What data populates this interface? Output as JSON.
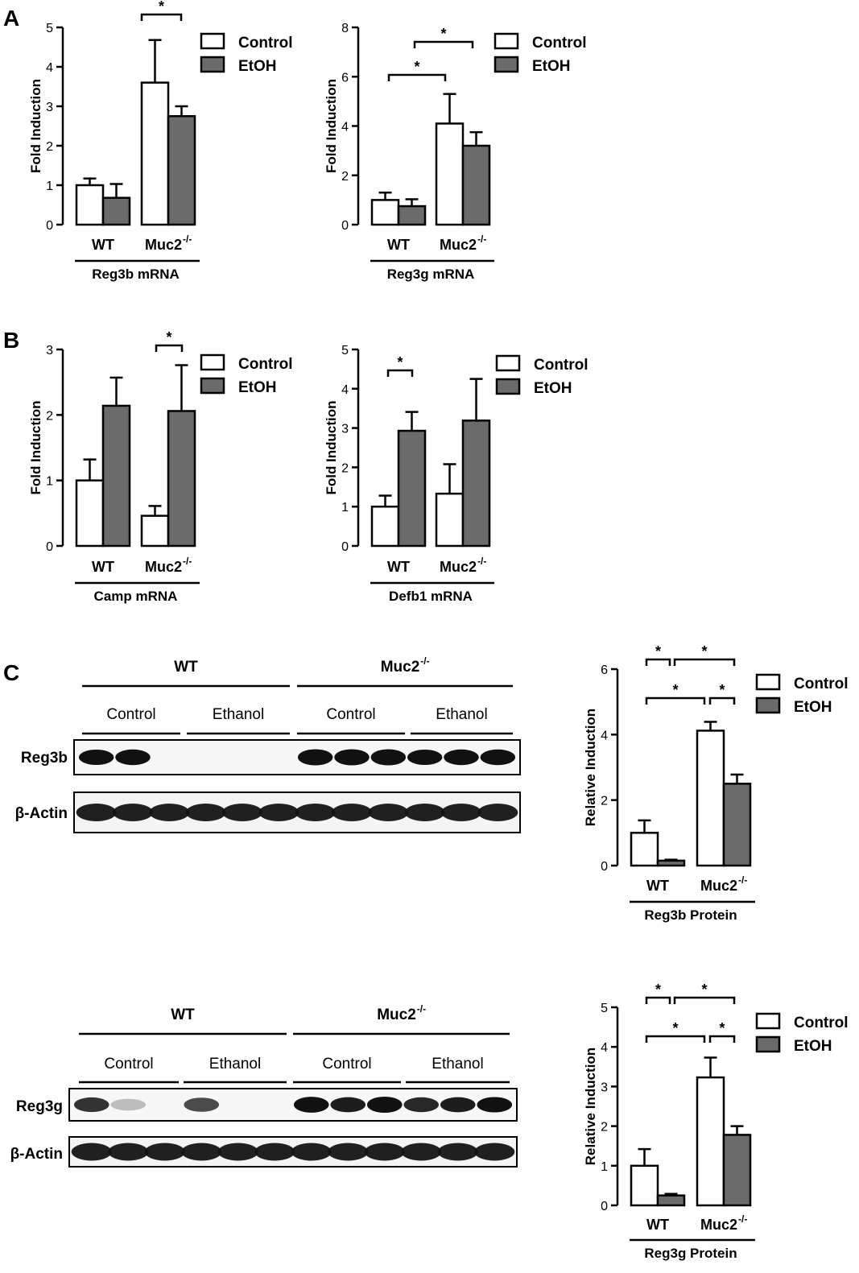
{
  "panel_labels": [
    "A",
    "B",
    "C"
  ],
  "legend": {
    "control": "Control",
    "etoh": "EtOH"
  },
  "colors": {
    "control": "#ffffff",
    "etoh": "#6b6b6b",
    "axis": "#000000"
  },
  "charts": [
    {
      "ylabel": "Fold Induction",
      "ticks": [
        0,
        1,
        2,
        3,
        4,
        5
      ],
      "groups": [
        "WT",
        "Muc2"
      ],
      "sup": "-/-",
      "gene": "Reg3b mRNA"
    },
    {
      "ylabel": "Fold Induction",
      "ticks": [
        0,
        2,
        4,
        6,
        8
      ],
      "groups": [
        "WT",
        "Muc2"
      ],
      "sup": "-/-",
      "gene": "Reg3g mRNA"
    },
    {
      "ylabel": "Fold Induction",
      "ticks": [
        0,
        1,
        2,
        3
      ],
      "groups": [
        "WT",
        "Muc2"
      ],
      "sup": "-/-",
      "gene": "Camp mRNA"
    },
    {
      "ylabel": "Fold Induction",
      "ticks": [
        0,
        1,
        2,
        3,
        4,
        5
      ],
      "groups": [
        "WT",
        "Muc2"
      ],
      "sup": "-/-",
      "gene": "Defb1 mRNA"
    },
    {
      "ylabel": "Relative Induction",
      "ticks": [
        0,
        2,
        4,
        6
      ],
      "groups": [
        "WT",
        "Muc2"
      ],
      "sup": "-/-",
      "gene": "Reg3b Protein"
    },
    {
      "ylabel": "Relative Induction",
      "ticks": [
        0,
        1,
        2,
        3,
        4,
        5
      ],
      "groups": [
        "WT",
        "Muc2"
      ],
      "sup": "-/-",
      "gene": "Reg3g Protein"
    }
  ],
  "blots": [
    {
      "wt": "WT",
      "ko": "Muc2",
      "sup": "-/-",
      "control": "Control",
      "ethanol": "Ethanol",
      "target": "Reg3b",
      "loading": "β-Actin",
      "target_band_intensity": [
        0.85,
        0.9,
        0,
        0,
        0,
        0,
        1,
        1,
        1,
        0.85,
        0.9,
        0.9
      ],
      "loading_band_intensity": [
        1,
        1,
        1,
        1,
        1,
        1,
        1,
        1,
        1,
        1,
        1,
        1
      ]
    },
    {
      "wt": "WT",
      "ko": "Muc2",
      "sup": "-/-",
      "control": "Control",
      "ethanol": "Ethanol",
      "target": "Reg3g",
      "loading": "β-Actin",
      "target_band_intensity": [
        0.7,
        0.1,
        0,
        0.6,
        0,
        0,
        0.95,
        0.8,
        1,
        0.75,
        0.8,
        0.85
      ],
      "loading_band_intensity": [
        1,
        1,
        1,
        1,
        1,
        1,
        1,
        1,
        1,
        1,
        1,
        1
      ]
    }
  ],
  "significance_mark": "*",
  "chart_data": [
    {
      "type": "bar",
      "title": "",
      "xlabel": "Reg3b mRNA",
      "ylabel": "Fold Induction",
      "ylim": [
        0,
        5
      ],
      "categories": [
        "WT",
        "Muc2-/-"
      ],
      "series": [
        {
          "name": "Control",
          "values": [
            1.0,
            3.6
          ],
          "errors": [
            0.17,
            1.08
          ]
        },
        {
          "name": "EtOH",
          "values": [
            0.68,
            2.75
          ],
          "errors": [
            0.35,
            0.25
          ]
        }
      ],
      "significance": [
        {
          "from": [
            1,
            "Control"
          ],
          "to": [
            1,
            "EtOH"
          ],
          "label": "*"
        }
      ]
    },
    {
      "type": "bar",
      "title": "",
      "xlabel": "Reg3g mRNA",
      "ylabel": "Fold Induction",
      "ylim": [
        0,
        8
      ],
      "categories": [
        "WT",
        "Muc2-/-"
      ],
      "series": [
        {
          "name": "Control",
          "values": [
            1.0,
            4.1
          ],
          "errors": [
            0.3,
            1.2
          ]
        },
        {
          "name": "EtOH",
          "values": [
            0.75,
            3.2
          ],
          "errors": [
            0.28,
            0.55
          ]
        }
      ],
      "significance": [
        {
          "from": [
            0,
            "Control"
          ],
          "to": [
            1,
            "Control"
          ],
          "label": "*"
        },
        {
          "from": [
            0,
            "EtOH"
          ],
          "to": [
            1,
            "EtOH"
          ],
          "label": "*"
        }
      ]
    },
    {
      "type": "bar",
      "title": "",
      "xlabel": "Camp mRNA",
      "ylabel": "Fold Induction",
      "ylim": [
        0,
        3
      ],
      "categories": [
        "WT",
        "Muc2-/-"
      ],
      "series": [
        {
          "name": "Control",
          "values": [
            1.0,
            0.46
          ],
          "errors": [
            0.32,
            0.15
          ]
        },
        {
          "name": "EtOH",
          "values": [
            2.14,
            2.06
          ],
          "errors": [
            0.43,
            0.7
          ]
        }
      ],
      "significance": [
        {
          "from": [
            1,
            "Control"
          ],
          "to": [
            1,
            "EtOH"
          ],
          "label": "*"
        }
      ]
    },
    {
      "type": "bar",
      "title": "",
      "xlabel": "Defb1 mRNA",
      "ylabel": "Fold Induction",
      "ylim": [
        0,
        5
      ],
      "categories": [
        "WT",
        "Muc2-/-"
      ],
      "series": [
        {
          "name": "Control",
          "values": [
            1.0,
            1.33
          ],
          "errors": [
            0.28,
            0.75
          ]
        },
        {
          "name": "EtOH",
          "values": [
            2.93,
            3.19
          ],
          "errors": [
            0.48,
            1.06
          ]
        }
      ],
      "significance": [
        {
          "from": [
            0,
            "Control"
          ],
          "to": [
            0,
            "EtOH"
          ],
          "label": "*"
        }
      ]
    },
    {
      "type": "bar",
      "title": "",
      "xlabel": "Reg3b Protein",
      "ylabel": "Relative Induction",
      "ylim": [
        0,
        6
      ],
      "categories": [
        "WT",
        "Muc2-/-"
      ],
      "series": [
        {
          "name": "Control",
          "values": [
            1.0,
            4.12
          ],
          "errors": [
            0.38,
            0.27
          ]
        },
        {
          "name": "EtOH",
          "values": [
            0.15,
            2.5
          ],
          "errors": [
            0.03,
            0.28
          ]
        }
      ],
      "significance": [
        {
          "from": [
            0,
            "Control"
          ],
          "to": [
            0,
            "EtOH"
          ],
          "label": "*"
        },
        {
          "from": [
            0,
            "EtOH"
          ],
          "to": [
            1,
            "EtOH"
          ],
          "label": "*"
        },
        {
          "from": [
            0,
            "Control"
          ],
          "to": [
            1,
            "Control"
          ],
          "label": "*"
        },
        {
          "from": [
            1,
            "Control"
          ],
          "to": [
            1,
            "EtOH"
          ],
          "label": "*"
        }
      ]
    },
    {
      "type": "bar",
      "title": "",
      "xlabel": "Reg3g Protein",
      "ylabel": "Relative Induction",
      "ylim": [
        0,
        5
      ],
      "categories": [
        "WT",
        "Muc2-/-"
      ],
      "series": [
        {
          "name": "Control",
          "values": [
            1.0,
            3.23
          ],
          "errors": [
            0.42,
            0.5
          ]
        },
        {
          "name": "EtOH",
          "values": [
            0.25,
            1.78
          ],
          "errors": [
            0.04,
            0.22
          ]
        }
      ],
      "significance": [
        {
          "from": [
            0,
            "Control"
          ],
          "to": [
            0,
            "EtOH"
          ],
          "label": "*"
        },
        {
          "from": [
            0,
            "EtOH"
          ],
          "to": [
            1,
            "EtOH"
          ],
          "label": "*"
        },
        {
          "from": [
            0,
            "Control"
          ],
          "to": [
            1,
            "Control"
          ],
          "label": "*"
        },
        {
          "from": [
            1,
            "Control"
          ],
          "to": [
            1,
            "EtOH"
          ],
          "label": "*"
        }
      ]
    }
  ]
}
